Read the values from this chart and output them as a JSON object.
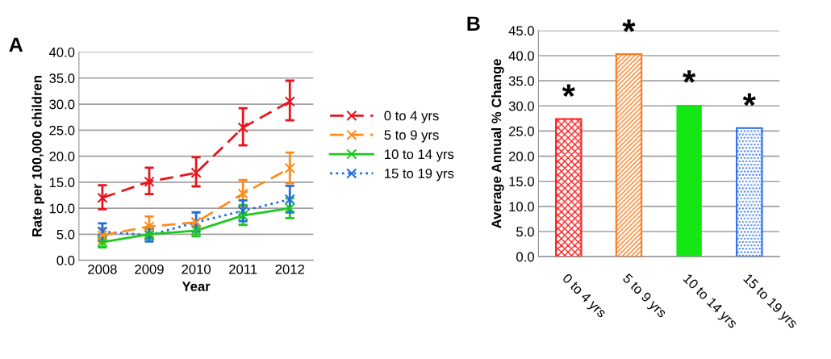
{
  "chart_data": [
    {
      "type": "line",
      "title": "A",
      "xlabel": "Year",
      "ylabel": "Rate per 100,000 children",
      "categories": [
        "2008",
        "2009",
        "2010",
        "2011",
        "2012"
      ],
      "ylim": [
        0,
        40
      ],
      "yticks": [
        {
          "value": 0,
          "label": "0.0"
        },
        {
          "value": 5,
          "label": "5.0"
        },
        {
          "value": 10,
          "label": "10.0"
        },
        {
          "value": 15,
          "label": "15.0"
        },
        {
          "value": 20,
          "label": "20.0"
        },
        {
          "value": 25,
          "label": "25.0"
        },
        {
          "value": 30,
          "label": "30.0"
        },
        {
          "value": 35,
          "label": "35.0"
        },
        {
          "value": 40,
          "label": "40.0"
        }
      ],
      "grid": "y",
      "legend": "right",
      "marker": "cross",
      "series": [
        {
          "name": "0 to 4 yrs",
          "color": "#e8141c",
          "line_style": "dashed",
          "values": [
            12.0,
            15.1,
            16.8,
            25.5,
            30.5
          ],
          "errors": [
            [
              9.8,
              14.4
            ],
            [
              12.7,
              17.8
            ],
            [
              14.2,
              19.8
            ],
            [
              22.1,
              29.2
            ],
            [
              26.9,
              34.5
            ]
          ]
        },
        {
          "name": "5 to 9 yrs",
          "color": "#ff8c1a",
          "line_style": "dashed",
          "values": [
            4.8,
            6.5,
            7.3,
            12.8,
            17.7
          ],
          "errors": [
            [
              3.5,
              6.2
            ],
            [
              4.6,
              8.4
            ],
            null,
            [
              10.4,
              15.4
            ],
            [
              14.8,
              20.7
            ]
          ]
        },
        {
          "name": "10 to 14 yrs",
          "color": "#1ec81e",
          "line_style": "solid",
          "values": [
            3.5,
            5.0,
            5.7,
            8.6,
            10.0
          ],
          "errors": [
            [
              2.5,
              4.4
            ],
            [
              4.1,
              6.0
            ],
            [
              4.6,
              6.6
            ],
            [
              6.8,
              10.6
            ],
            [
              8.1,
              11.9
            ]
          ]
        },
        {
          "name": "15 to 19 yrs",
          "color": "#1f6fe0",
          "line_style": "dotted",
          "values": [
            5.5,
            4.8,
            7.3,
            9.5,
            11.7
          ],
          "errors": [
            [
              3.8,
              7.1
            ],
            [
              3.6,
              6.1
            ],
            [
              5.5,
              9.2
            ],
            [
              7.5,
              11.5
            ],
            [
              9.2,
              14.3
            ]
          ]
        }
      ]
    },
    {
      "type": "bar",
      "title": "B",
      "ylabel": "Average Annual % Change",
      "categories": [
        "0 to 4 yrs",
        "5 to 9 yrs",
        "10 to 14 yrs",
        "15 to 19 yrs"
      ],
      "values": [
        27.4,
        40.3,
        30.2,
        25.6
      ],
      "colors": [
        "#ff2020",
        "#ff7a1a",
        "#14e614",
        "#2a6cf0"
      ],
      "ylim": [
        0,
        45
      ],
      "yticks": [
        {
          "value": 0,
          "label": "0.0"
        },
        {
          "value": 5,
          "label": "5.0"
        },
        {
          "value": 10,
          "label": "10.0"
        },
        {
          "value": 15,
          "label": "15.0"
        },
        {
          "value": 20,
          "label": "20.0"
        },
        {
          "value": 25,
          "label": "25.0"
        },
        {
          "value": 30,
          "label": "30.0"
        },
        {
          "value": 35,
          "label": "35.0"
        },
        {
          "value": 40,
          "label": "40.0"
        },
        {
          "value": 45,
          "label": "45.0"
        }
      ],
      "grid": "y",
      "annotations": [
        "*",
        "*",
        "*",
        "*"
      ]
    }
  ]
}
